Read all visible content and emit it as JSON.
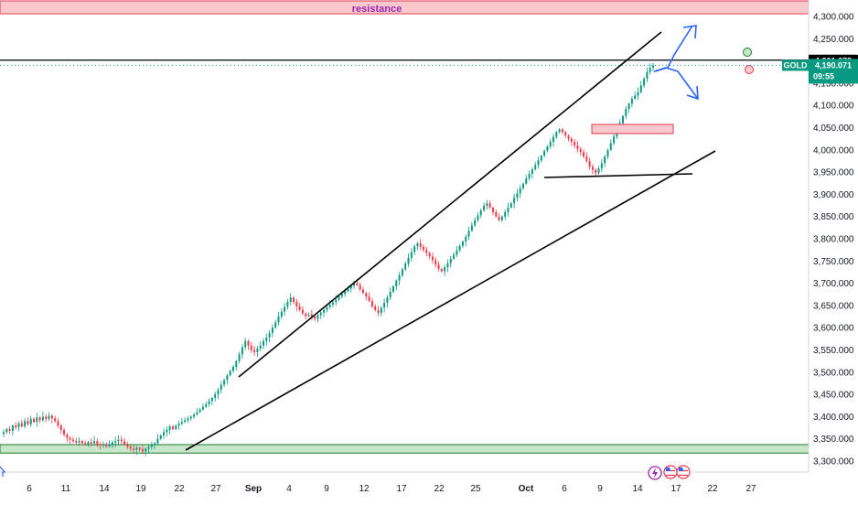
{
  "chart_data": {
    "type": "candlestick",
    "symbol": "GOLD",
    "colors": {
      "up": "#089981",
      "down": "#f23645",
      "resistance_fill": "#f8c8cd",
      "resistance_border": "#e53950",
      "support_fill": "#c8e6c9",
      "support_border": "#1b7a2a",
      "trendline": "#000000",
      "arrow": "#2962ff",
      "price_badge": "#089981",
      "level_badge": "#000000"
    },
    "y_axis": {
      "ylim": [
        3290,
        4335
      ],
      "ticks": [
        3300,
        3350,
        3400,
        3450,
        3500,
        3550,
        3600,
        3650,
        3700,
        3750,
        3800,
        3850,
        3900,
        3950,
        4000,
        4050,
        4100,
        4150,
        4200,
        4250,
        4300
      ],
      "tick_labels": [
        "3,300.000",
        "3,350.000",
        "3,400.000",
        "3,450.000",
        "3,500.000",
        "3,550.000",
        "3,600.000",
        "3,650.000",
        "3,700.000",
        "3,750.000",
        "3,800.000",
        "3,850.000",
        "3,900.000",
        "3,950.000",
        "4,000.000",
        "4,050.000",
        "4,100.000",
        "4,150.000",
        "4,200.000",
        "4,250.000",
        "4,300.000"
      ]
    },
    "x_axis": {
      "labels": [
        {
          "text": "6",
          "month": false
        },
        {
          "text": "11",
          "month": false
        },
        {
          "text": "14",
          "month": false
        },
        {
          "text": "19",
          "month": false
        },
        {
          "text": "22",
          "month": false
        },
        {
          "text": "27",
          "month": false
        },
        {
          "text": "Sep",
          "month": true
        },
        {
          "text": "4",
          "month": false
        },
        {
          "text": "9",
          "month": false
        },
        {
          "text": "12",
          "month": false
        },
        {
          "text": "17",
          "month": false
        },
        {
          "text": "22",
          "month": false
        },
        {
          "text": "25",
          "month": false
        },
        {
          "text": "Oct",
          "month": true
        },
        {
          "text": "6",
          "month": false
        },
        {
          "text": "9",
          "month": false
        },
        {
          "text": "14",
          "month": false
        },
        {
          "text": "17",
          "month": false
        },
        {
          "text": "22",
          "month": false
        },
        {
          "text": "27",
          "month": false
        }
      ]
    },
    "zones": [
      {
        "name": "resistance",
        "label": "resistance",
        "from": 4306,
        "to": 4335
      },
      {
        "name": "support",
        "label": "",
        "from": 3318,
        "to": 3337
      }
    ],
    "levels": {
      "horizontal": 4201.673,
      "horizontal_label": "4,201.673",
      "last_price": 4190.071,
      "last_price_label": "4,190.071",
      "countdown": "09:55",
      "symbol_tag": "GOLD"
    },
    "series": [
      {
        "name": "GOLD",
        "closes": [
          3365,
          3372,
          3368,
          3380,
          3376,
          3385,
          3378,
          3390,
          3383,
          3395,
          3388,
          3398,
          3392,
          3400,
          3395,
          3402,
          3396,
          3390,
          3380,
          3370,
          3360,
          3352,
          3348,
          3345,
          3342,
          3345,
          3340,
          3338,
          3343,
          3340,
          3345,
          3338,
          3335,
          3338,
          3333,
          3338,
          3342,
          3345,
          3348,
          3345,
          3338,
          3332,
          3328,
          3325,
          3330,
          3327,
          3322,
          3328,
          3332,
          3336,
          3340,
          3350,
          3358,
          3365,
          3370,
          3378,
          3372,
          3380,
          3384,
          3388,
          3392,
          3396,
          3400,
          3405,
          3410,
          3416,
          3422,
          3428,
          3435,
          3442,
          3450,
          3460,
          3472,
          3482,
          3493,
          3503,
          3512,
          3525,
          3540,
          3556,
          3570,
          3560,
          3550,
          3545,
          3553,
          3560,
          3570,
          3578,
          3588,
          3600,
          3612,
          3625,
          3636,
          3647,
          3658,
          3668,
          3658,
          3648,
          3640,
          3632,
          3626,
          3630,
          3625,
          3620,
          3628,
          3634,
          3640,
          3646,
          3652,
          3657,
          3663,
          3670,
          3676,
          3682,
          3688,
          3694,
          3700,
          3696,
          3686,
          3678,
          3670,
          3660,
          3648,
          3640,
          3633,
          3645,
          3656,
          3668,
          3681,
          3693,
          3706,
          3718,
          3731,
          3744,
          3757,
          3770,
          3783,
          3790,
          3782,
          3775,
          3768,
          3760,
          3752,
          3742,
          3732,
          3727,
          3736,
          3745,
          3755,
          3764,
          3774,
          3784,
          3794,
          3805,
          3818,
          3830,
          3842,
          3853,
          3864,
          3874,
          3880,
          3870,
          3860,
          3850,
          3842,
          3850,
          3860,
          3870,
          3880,
          3892,
          3902,
          3914,
          3924,
          3936,
          3946,
          3956,
          3966,
          3976,
          3987,
          3998,
          4008,
          4018,
          4029,
          4040,
          4046,
          4040,
          4032,
          4025,
          4018,
          4010,
          4002,
          3995,
          3985,
          3975,
          3962,
          3955,
          3948,
          3958,
          3970,
          3985,
          4000,
          4015,
          4030,
          4046,
          4060,
          4076,
          4092,
          4104,
          4115,
          4122,
          4130,
          4145,
          4160,
          4175,
          4185,
          4190
        ]
      }
    ]
  },
  "axis_footer": {
    "event_icons": [
      "lightning-icon",
      "flag-icon-us",
      "flag-icon-us"
    ]
  }
}
